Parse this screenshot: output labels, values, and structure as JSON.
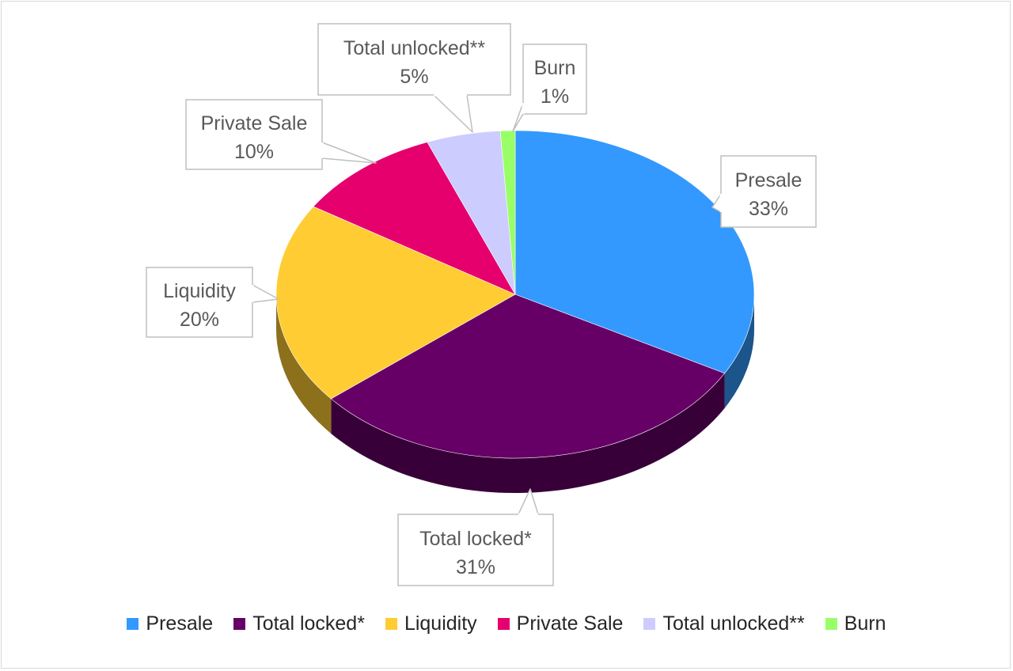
{
  "chart_data": {
    "type": "pie",
    "variant": "3d",
    "title": "",
    "categories": [
      "Presale",
      "Total locked*",
      "Liquidity",
      "Private Sale",
      "Total unlocked**",
      "Burn"
    ],
    "values": [
      33,
      31,
      20,
      10,
      5,
      1
    ],
    "value_labels": [
      "33%",
      "31%",
      "20%",
      "10%",
      "5%",
      "1%"
    ],
    "unit": "%",
    "colors": [
      "#3399ff",
      "#660066",
      "#ffcc33",
      "#e6006e",
      "#ccccff",
      "#99ff66"
    ],
    "legend": {
      "position": "bottom"
    },
    "data_labels": "callouts"
  }
}
